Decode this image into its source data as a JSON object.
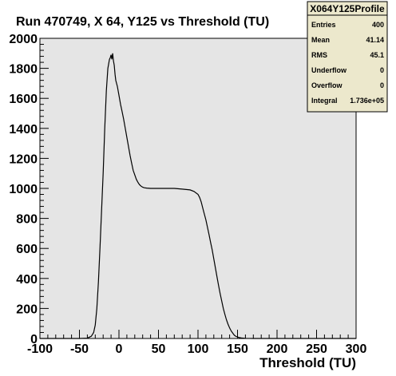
{
  "chart_data": {
    "type": "line",
    "title": "Run 470749, X 64, Y125 vs Threshold (TU)",
    "xlabel": "Threshold (TU)",
    "ylabel": "",
    "xlim": [
      -100,
      300
    ],
    "ylim": [
      0,
      2000
    ],
    "xticks": [
      -100,
      -50,
      0,
      50,
      100,
      150,
      200,
      250,
      300
    ],
    "yticks": [
      0,
      200,
      400,
      600,
      800,
      1000,
      1200,
      1400,
      1600,
      1800,
      2000
    ],
    "xtick_labels": [
      "-100",
      "-50",
      "0",
      "50",
      "100",
      "150",
      "200",
      "250",
      "300"
    ],
    "ytick_labels": [
      "0",
      "200",
      "400",
      "600",
      "800",
      "1000",
      "1200",
      "1400",
      "1600",
      "1800",
      "2000"
    ],
    "grid": false,
    "series": [
      {
        "color": "#000000",
        "x": [
          -100,
          -50,
          -40,
          -35,
          -32,
          -30,
          -28,
          -26,
          -24,
          -22,
          -20,
          -18,
          -16,
          -14,
          -12,
          -11,
          -10,
          -9,
          -8,
          -7,
          -6,
          -5,
          -4,
          -2,
          0,
          2,
          4,
          6,
          8,
          10,
          12,
          14,
          16,
          18,
          20,
          22,
          24,
          26,
          28,
          30,
          32,
          35,
          40,
          50,
          60,
          70,
          80,
          90,
          95,
          100,
          102,
          104,
          106,
          108,
          110,
          112,
          114,
          116,
          118,
          120,
          122,
          124,
          126,
          128,
          130,
          132,
          134,
          136,
          138,
          140,
          142,
          144,
          146,
          148,
          150,
          152,
          155,
          160,
          170,
          200,
          250,
          300
        ],
        "y": [
          0,
          0,
          2,
          15,
          40,
          90,
          200,
          380,
          600,
          850,
          1100,
          1400,
          1650,
          1800,
          1860,
          1870,
          1890,
          1860,
          1900,
          1850,
          1820,
          1760,
          1720,
          1680,
          1620,
          1560,
          1510,
          1460,
          1400,
          1340,
          1280,
          1220,
          1170,
          1120,
          1090,
          1060,
          1040,
          1025,
          1015,
          1008,
          1004,
          1002,
          1000,
          1000,
          1000,
          1000,
          995,
          990,
          980,
          960,
          940,
          910,
          870,
          830,
          790,
          740,
          690,
          640,
          590,
          530,
          470,
          410,
          355,
          300,
          250,
          200,
          160,
          125,
          95,
          70,
          50,
          35,
          22,
          14,
          10,
          6,
          3,
          1,
          0,
          0,
          0,
          0
        ]
      }
    ],
    "stats": {
      "title": "X064Y125Profile",
      "rows": [
        {
          "label": "Entries",
          "value": "400"
        },
        {
          "label": "Mean",
          "value": "41.14"
        },
        {
          "label": "RMS",
          "value": "45.1"
        },
        {
          "label": "Underflow",
          "value": "0"
        },
        {
          "label": "Overflow",
          "value": "0"
        },
        {
          "label": "Integral",
          "value": "1.736e+05"
        }
      ]
    },
    "colors": {
      "frame_fill": "#e5e5e5",
      "stats_fill": "#ece8cc",
      "line": "#000000"
    }
  }
}
